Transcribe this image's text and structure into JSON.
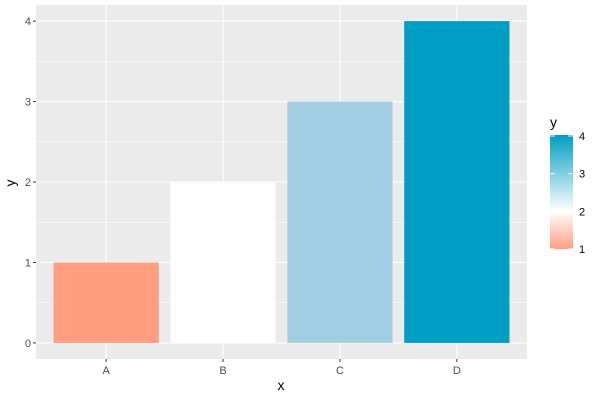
{
  "chart_data": {
    "type": "bar",
    "categories": [
      "A",
      "B",
      "C",
      "D"
    ],
    "values": [
      1,
      2,
      3,
      4
    ],
    "xlabel": "x",
    "ylabel": "y",
    "ylim": [
      0,
      4
    ],
    "yticks": [
      0,
      1,
      2,
      3,
      4
    ],
    "grid": true,
    "fill_scale": {
      "title": "y",
      "type": "gradient2",
      "low": "#FF9E81",
      "mid": "#FFFFFF",
      "high": "#009DC4",
      "midpoint": 2,
      "limits": [
        1,
        4
      ],
      "breaks": [
        1,
        2,
        3,
        4
      ]
    },
    "bar_colors": [
      "#FF9E81",
      "#FFFFFF",
      "#A3CDE1",
      "#009DC4"
    ],
    "legend_position": "right",
    "panel_background": "#EBEBEB"
  }
}
